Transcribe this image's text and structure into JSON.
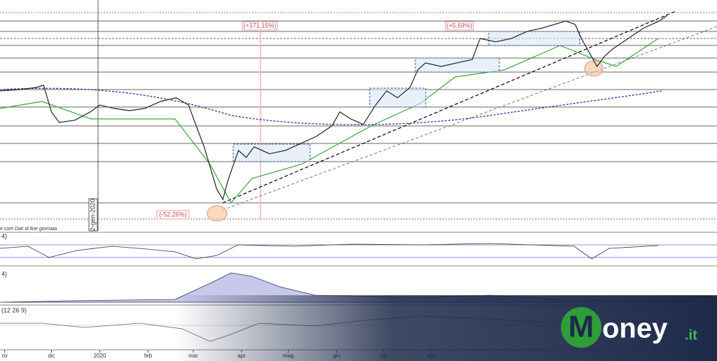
{
  "chart_data": {
    "type": "line",
    "annotations": [
      "(+171,15%)",
      "(+5,69%)",
      "(-52,26%)"
    ],
    "date_marker": "2-gen-2020",
    "source": "e.com Dati di fine giornata",
    "panel_labels": [
      "4)",
      "4)",
      "(12 26 9)"
    ],
    "x": [
      -3,
      10,
      20,
      25,
      30,
      35,
      45,
      55,
      61,
      70,
      80,
      90,
      100,
      110,
      118,
      122,
      128,
      132,
      136,
      140,
      143,
      146,
      150,
      155,
      160,
      170,
      180,
      190,
      200,
      210,
      215,
      222,
      230,
      238,
      245,
      252,
      260,
      265,
      270,
      280,
      290,
      300,
      305,
      315,
      325,
      335,
      345,
      360,
      366,
      370,
      375,
      380,
      385,
      390,
      400,
      410,
      420,
      425
    ],
    "series": [
      {
        "color": "#222",
        "values": [
          59.4,
          60,
          60.9,
          61.9,
          50,
          45.3,
          46.3,
          50,
          53.1,
          51.6,
          50.6,
          51.6,
          54.7,
          56.3,
          53.1,
          45.3,
          34.4,
          25,
          15.6,
          10.9,
          18.8,
          25,
          32.8,
          29.7,
          34.4,
          31.3,
          32.8,
          35.9,
          39.1,
          43.8,
          50,
          46.9,
          44.4,
          53.1,
          59.4,
          56.3,
          60.9,
          68.8,
          71.9,
          70.3,
          71.9,
          73.4,
          82.8,
          81.3,
          82.8,
          85.9,
          87.5,
          90.6,
          89.1,
          82.8,
          76.6,
          70.3,
          75,
          78.1,
          82.8,
          87.5,
          90.6,
          93.1
        ]
      }
    ],
    "xlim": [
      -3,
      457
    ],
    "ylim": [
      0,
      100
    ],
    "xticks": [
      {
        "value": 0,
        "label": "ov"
      },
      {
        "value": 30,
        "label": "dic"
      },
      {
        "value": 61,
        "label": "2020"
      },
      {
        "value": 92,
        "label": "feb"
      },
      {
        "value": 121,
        "label": "mar"
      },
      {
        "value": 152,
        "label": "apr"
      },
      {
        "value": 182,
        "label": "mag"
      },
      {
        "value": 213,
        "label": "giu"
      },
      {
        "value": 243,
        "label": "lug"
      },
      {
        "value": 274,
        "label": "ago"
      }
    ]
  },
  "logo": {
    "initial": "M",
    "rest": "oney",
    "suffix": ".it"
  }
}
